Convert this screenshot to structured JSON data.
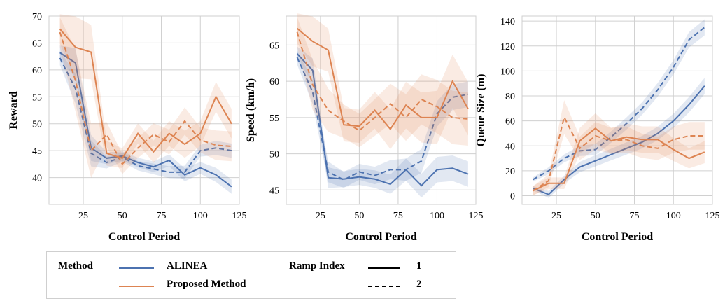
{
  "colors": {
    "alinea": "#4c72b0",
    "proposed": "#dd8452"
  },
  "legend": {
    "method_title": "Method",
    "method_entries": [
      "ALINEA",
      "Proposed Method"
    ],
    "ramp_title": "Ramp Index",
    "ramp_entries": [
      "1",
      "2"
    ]
  },
  "chart_data": [
    {
      "type": "line",
      "xlabel": "Control Period",
      "ylabel": "Reward",
      "xlim": [
        3,
        125
      ],
      "ylim": [
        35,
        70
      ],
      "xticks": [
        25,
        50,
        75,
        100,
        125
      ],
      "yticks": [
        40,
        45,
        50,
        55,
        60,
        65,
        70
      ],
      "grid": true,
      "x": [
        10,
        20,
        30,
        40,
        50,
        60,
        70,
        80,
        90,
        100,
        110,
        120
      ],
      "series": [
        {
          "name": "ALINEA",
          "ramp": "1",
          "values": [
            63.2,
            61.3,
            45.5,
            43.6,
            44.0,
            42.8,
            42.0,
            43.2,
            40.5,
            41.8,
            40.5,
            38.3
          ]
        },
        {
          "name": "ALINEA",
          "ramp": "2",
          "values": [
            62.2,
            56.5,
            44.5,
            42.8,
            43.8,
            42.2,
            41.6,
            41.0,
            41.0,
            45.0,
            45.5,
            45.0
          ]
        },
        {
          "name": "Proposed Method",
          "ramp": "1",
          "values": [
            67.6,
            64.2,
            63.3,
            44.5,
            43.6,
            48.2,
            44.8,
            48.2,
            46.2,
            48.2,
            55.0,
            50.0
          ]
        },
        {
          "name": "Proposed Method",
          "ramp": "2",
          "values": [
            67.0,
            58.0,
            45.0,
            48.0,
            42.5,
            45.5,
            48.0,
            46.6,
            50.5,
            47.0,
            46.0,
            45.8
          ]
        }
      ]
    },
    {
      "type": "line",
      "xlabel": "Control Period",
      "ylabel": "Speed (km/h)",
      "xlim": [
        3,
        125
      ],
      "ylim": [
        43,
        69
      ],
      "xticks": [
        25,
        50,
        75,
        100,
        125
      ],
      "yticks": [
        45,
        50,
        55,
        60,
        65
      ],
      "grid": true,
      "x": [
        10,
        20,
        30,
        40,
        50,
        60,
        70,
        80,
        90,
        100,
        110,
        120
      ],
      "series": [
        {
          "name": "ALINEA",
          "ramp": "1",
          "values": [
            63.8,
            61.5,
            46.7,
            46.5,
            46.8,
            46.5,
            45.8,
            47.8,
            45.6,
            47.8,
            48.0,
            47.2
          ]
        },
        {
          "name": "ALINEA",
          "ramp": "2",
          "values": [
            63.3,
            58.5,
            47.5,
            46.4,
            47.5,
            47.0,
            47.8,
            47.8,
            49.0,
            55.5,
            57.8,
            58.2
          ]
        },
        {
          "name": "Proposed Method",
          "ramp": "1",
          "values": [
            67.3,
            65.5,
            64.3,
            54.0,
            53.8,
            56.0,
            53.4,
            56.7,
            55.0,
            55.0,
            60.0,
            56.2
          ]
        },
        {
          "name": "Proposed Method",
          "ramp": "2",
          "values": [
            66.8,
            59.5,
            56.0,
            54.5,
            53.2,
            55.0,
            56.9,
            55.0,
            57.5,
            56.5,
            55.0,
            54.8
          ]
        }
      ]
    },
    {
      "type": "line",
      "xlabel": "Control Period",
      "ylabel": "Queue Size (m)",
      "xlim": [
        3,
        125
      ],
      "ylim": [
        -7,
        144
      ],
      "xticks": [
        25,
        50,
        75,
        100,
        125
      ],
      "yticks": [
        0,
        20,
        40,
        60,
        80,
        100,
        120,
        140
      ],
      "grid": true,
      "x": [
        10,
        20,
        30,
        40,
        50,
        60,
        70,
        80,
        90,
        100,
        110,
        120
      ],
      "series": [
        {
          "name": "ALINEA",
          "ramp": "1",
          "values": [
            6,
            1,
            13,
            23,
            28,
            33,
            38,
            43,
            50,
            60,
            73,
            88
          ]
        },
        {
          "name": "ALINEA",
          "ramp": "2",
          "values": [
            13,
            20,
            30,
            36,
            37,
            47,
            58,
            70,
            85,
            103,
            125,
            135
          ]
        },
        {
          "name": "Proposed Method",
          "ramp": "1",
          "values": [
            4,
            10,
            10,
            44,
            54,
            44,
            47,
            45,
            45,
            37,
            30,
            35
          ]
        },
        {
          "name": "Proposed Method",
          "ramp": "2",
          "values": [
            4,
            12,
            63,
            38,
            48,
            44,
            45,
            40,
            38,
            45,
            48,
            48
          ]
        }
      ]
    }
  ]
}
